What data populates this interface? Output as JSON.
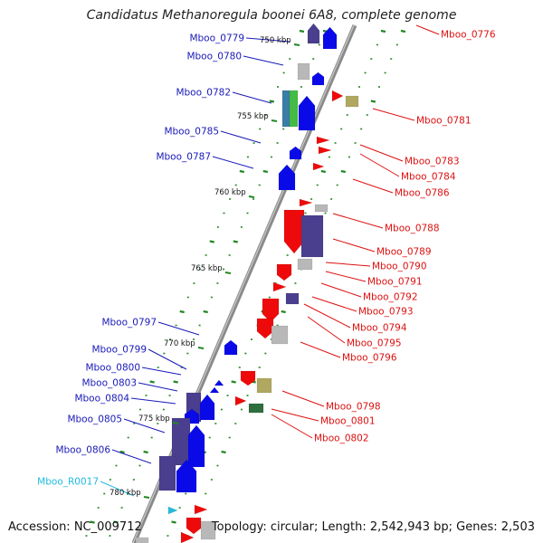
{
  "title": "Candidatus Methanoregula boonei 6A8, complete genome",
  "accession": "Accession: NC_009712",
  "topology": "Topology: circular; Length: 2,542,943 bp; Genes: 2,503",
  "colors": {
    "left_label": "#1a1ab8",
    "right_label": "#dd1111",
    "rna_label": "#22bbdd",
    "backbone": "#888888",
    "tick": "#228822",
    "gene_blue": "#0a0ae8",
    "gene_red": "#ee0a0a",
    "gene_navy": "#4a3f8e",
    "gene_gray": "#b8b8b8",
    "gene_olive": "#b0a860",
    "gene_green": "#44bb44",
    "gene_teal": "#3a7ea8",
    "gene_darkgreen": "#2f6e3f",
    "gene_cyan": "#22bbdd"
  },
  "kbp_marks": [
    "750 kbp",
    "755 kbp",
    "760 kbp",
    "765 kbp",
    "770 kbp",
    "775 kbp",
    "780 kbp"
  ],
  "left_labels": [
    "Mboo_0779",
    "Mboo_0780",
    "Mboo_0782",
    "Mboo_0785",
    "Mboo_0787",
    "Mboo_0797",
    "Mboo_0799",
    "Mboo_0800",
    "Mboo_0803",
    "Mboo_0804",
    "Mboo_0805",
    "Mboo_0806",
    "Mboo_R0017"
  ],
  "right_labels": [
    "Mboo_0776",
    "Mboo_0781",
    "Mboo_0783",
    "Mboo_0784",
    "Mboo_0786",
    "Mboo_0788",
    "Mboo_0789",
    "Mboo_0790",
    "Mboo_0791",
    "Mboo_0792",
    "Mboo_0793",
    "Mboo_0794",
    "Mboo_0795",
    "Mboo_0796",
    "Mboo_0798",
    "Mboo_0801",
    "Mboo_0802"
  ]
}
